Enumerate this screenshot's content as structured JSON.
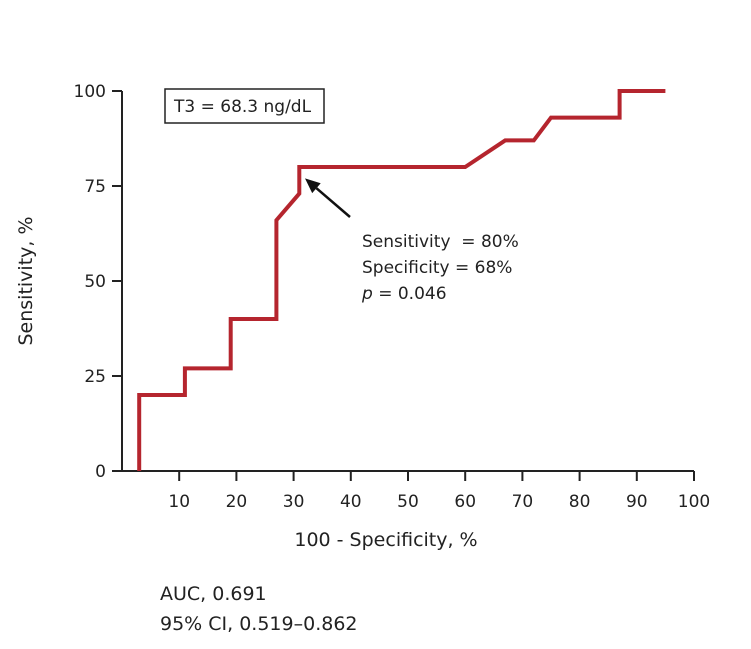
{
  "chart_data": {
    "type": "line",
    "xlabel": "100 - Specificity, %",
    "ylabel": "Sensitivity, %",
    "xlim": [
      0,
      100
    ],
    "ylim": [
      0,
      100
    ],
    "xticks": [
      10,
      20,
      30,
      40,
      50,
      60,
      70,
      80,
      90,
      100
    ],
    "yticks": [
      0,
      25,
      50,
      75,
      100
    ],
    "grid": false,
    "series": [
      {
        "color": "#b5252e",
        "points": [
          [
            3,
            0
          ],
          [
            3,
            20
          ],
          [
            11,
            20
          ],
          [
            11,
            27
          ],
          [
            19,
            27
          ],
          [
            19,
            40
          ],
          [
            27,
            40
          ],
          [
            27,
            66
          ],
          [
            31,
            73
          ],
          [
            31,
            80
          ],
          [
            60,
            80
          ],
          [
            67,
            87
          ],
          [
            72,
            87
          ],
          [
            75,
            93
          ],
          [
            87,
            93
          ],
          [
            87,
            100
          ],
          [
            95,
            100
          ]
        ]
      }
    ],
    "threshold_label": "T3 = 68.3 ng/dL",
    "arrow_target": [
      32,
      77
    ],
    "annotation_lines": [
      {
        "text": "Sensitivity  = 80%"
      },
      {
        "text": "Specificity = 68%"
      },
      {
        "p_symbol": "p",
        "text": " = 0.046"
      }
    ]
  },
  "stats": {
    "auc": "AUC, 0.691",
    "ci": "95% CI, 0.519–0.862"
  }
}
